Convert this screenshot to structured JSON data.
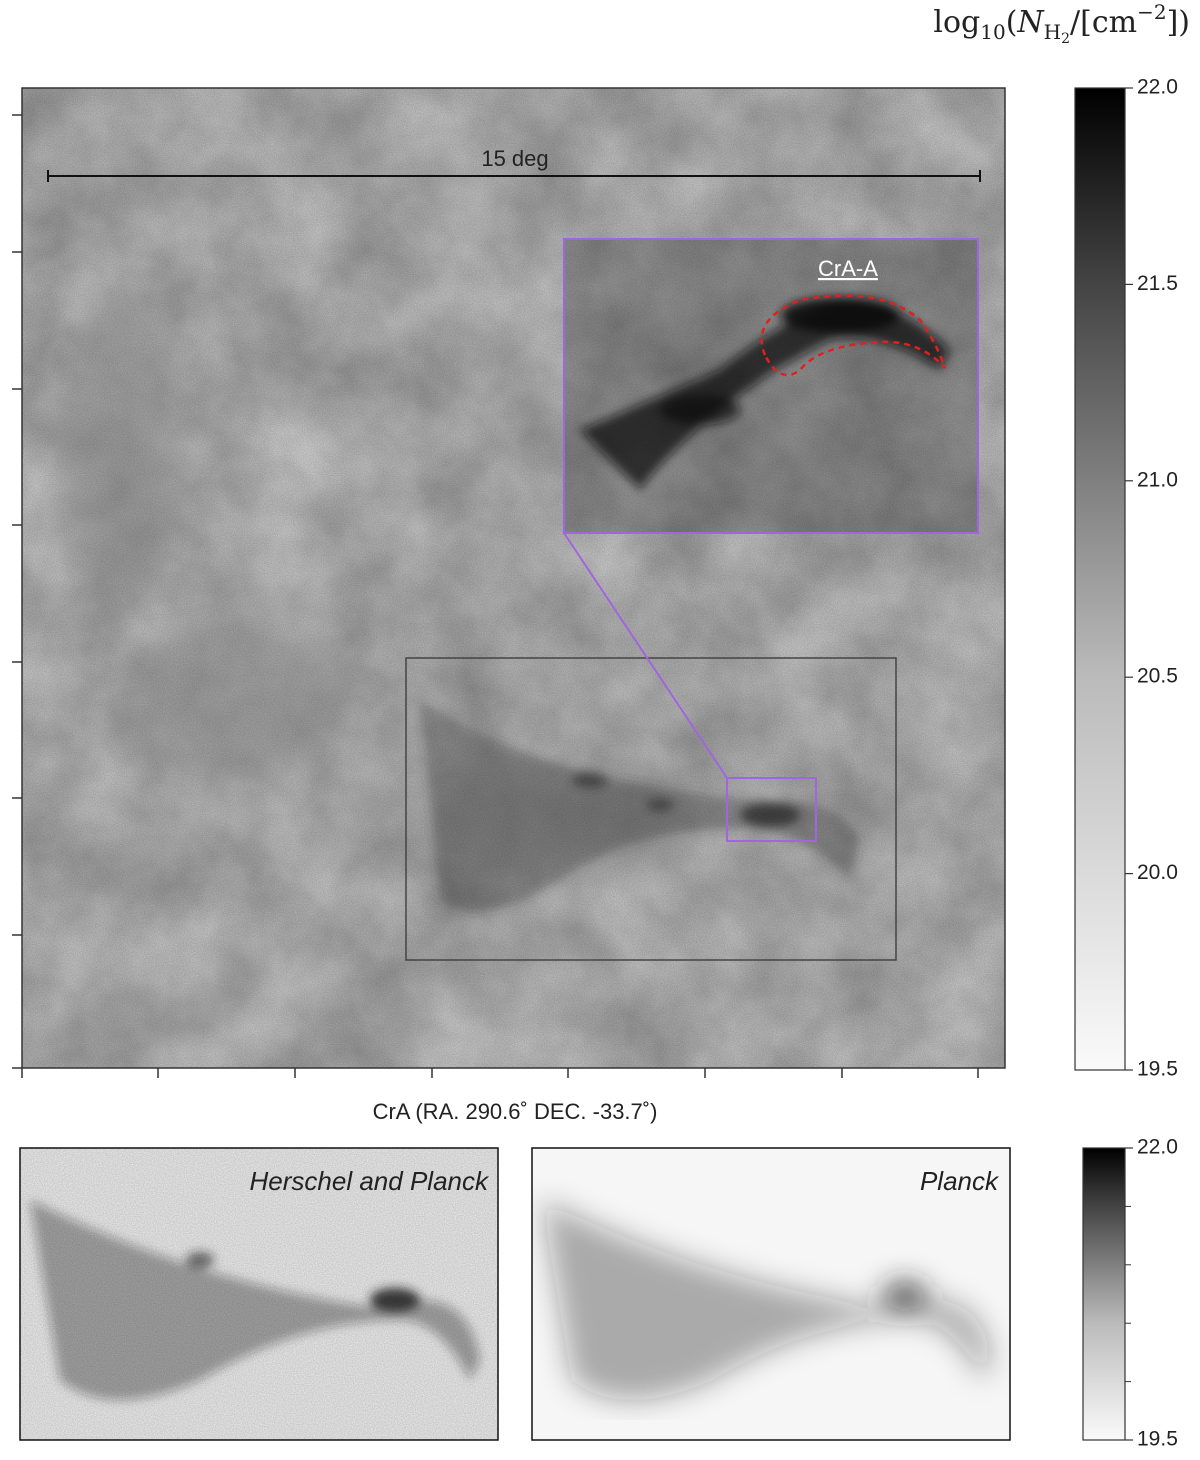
{
  "figure": {
    "colorbar_label": [
      {
        "text": "log",
        "style": "normal"
      },
      {
        "text": "10",
        "style": "sub"
      },
      {
        "text": "(",
        "style": "normal"
      },
      {
        "text": "N",
        "style": "italic"
      },
      {
        "text": "H",
        "style": "sub"
      },
      {
        "text": "2",
        "style": "subsub"
      },
      {
        "text": "/[cm",
        "style": "normal"
      },
      {
        "text": "−2",
        "style": "sup"
      },
      {
        "text": "])",
        "style": "normal"
      }
    ],
    "main_map": {
      "scale_bar_label": "15 deg",
      "inset_label": "CrA-A",
      "xlabel": "CrA (RA. 290.6˚ DEC. -33.7˚)"
    },
    "colorbar": {
      "lim": [
        19.5,
        22.0
      ],
      "ticks": [
        {
          "value": 19.5,
          "label": "19.5"
        },
        {
          "value": 20.0,
          "label": "20.0"
        },
        {
          "value": 20.5,
          "label": "20.5"
        },
        {
          "value": 21.0,
          "label": "21.0"
        },
        {
          "value": 21.5,
          "label": "21.5"
        },
        {
          "value": 22.0,
          "label": "22.0"
        }
      ]
    },
    "panels": [
      {
        "title": "Herschel and Planck"
      },
      {
        "title": "Planck"
      }
    ],
    "small_colorbar": {
      "lim": [
        19.5,
        22.0
      ],
      "ticks": [
        {
          "value": 19.5,
          "label": "19.5"
        },
        {
          "value": 22.0,
          "label": "22.0"
        }
      ],
      "minor_ticks": [
        20.0,
        20.5,
        21.0,
        21.5
      ]
    }
  }
}
